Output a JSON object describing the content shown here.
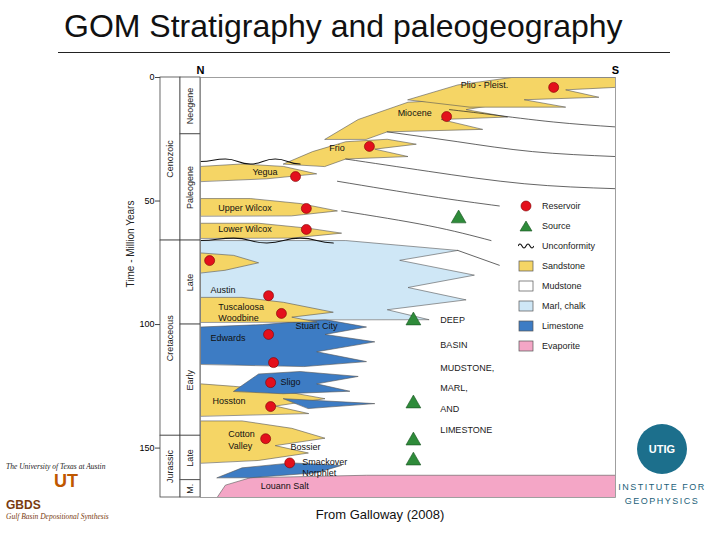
{
  "chart_data": {
    "type": "stratigraphic",
    "title": "GOM Stratigraphy and paleogeography",
    "ylabel": "Time - Million Years",
    "ylim": [
      0,
      170
    ],
    "yticks": [
      0,
      50,
      100,
      150
    ],
    "xlim": [
      0,
      100
    ],
    "xticks": [
      {
        "value": 0,
        "label": "N"
      },
      {
        "value": 100,
        "label": "S"
      }
    ],
    "eras": [
      {
        "label": "Cenozoic",
        "from": 0,
        "to": 66
      },
      {
        "label": "Cretaceous",
        "from": 66,
        "to": 145
      },
      {
        "label": "Jurassic",
        "from": 145,
        "to": 170
      }
    ],
    "epochs": [
      {
        "label": "Neogene",
        "from": 0,
        "to": 23
      },
      {
        "label": "Paleogene",
        "from": 23,
        "to": 66
      },
      {
        "label": "Late",
        "from": 66,
        "to": 100
      },
      {
        "label": "Early",
        "from": 100,
        "to": 145
      },
      {
        "label": "Late",
        "from": 145,
        "to": 163
      },
      {
        "label": "M.",
        "from": 163,
        "to": 170
      }
    ],
    "lithologies": [
      {
        "name": "Sandstone",
        "color": "#f5d565"
      },
      {
        "name": "Mudstone",
        "color": "#ffffff"
      },
      {
        "name": "Marl, chalk",
        "color": "#cfe7f6"
      },
      {
        "name": "Limestone",
        "color": "#3d7cc4"
      },
      {
        "name": "Evaporite",
        "color": "#f4a6c6"
      }
    ],
    "units": [
      {
        "lithology": "Evaporite",
        "points": [
          [
            4,
            170
          ],
          [
            6,
            165
          ],
          [
            12,
            162
          ],
          [
            40,
            161
          ],
          [
            100,
            161
          ],
          [
            100,
            170
          ]
        ]
      },
      {
        "lithology": "Limestone",
        "points": [
          [
            4,
            162
          ],
          [
            10,
            158
          ],
          [
            22,
            156
          ],
          [
            34,
            157
          ],
          [
            28,
            160
          ],
          [
            12,
            162
          ]
        ]
      },
      {
        "lithology": "Sandstone",
        "points": [
          [
            0,
            156
          ],
          [
            0,
            139
          ],
          [
            10,
            139
          ],
          [
            22,
            142
          ],
          [
            30,
            146
          ],
          [
            18,
            149
          ],
          [
            26,
            152
          ],
          [
            14,
            155
          ]
        ]
      },
      {
        "lithology": "Sandstone",
        "points": [
          [
            0,
            137
          ],
          [
            0,
            124
          ],
          [
            8,
            125
          ],
          [
            20,
            127
          ],
          [
            30,
            130
          ],
          [
            18,
            133
          ],
          [
            26,
            136
          ]
        ]
      },
      {
        "lithology": "Limestone",
        "points": [
          [
            20,
            130
          ],
          [
            42,
            132
          ],
          [
            26,
            134
          ]
        ]
      },
      {
        "lithology": "Limestone",
        "points": [
          [
            8,
            127
          ],
          [
            14,
            120
          ],
          [
            24,
            119
          ],
          [
            38,
            121
          ],
          [
            28,
            124
          ],
          [
            36,
            127
          ],
          [
            20,
            128
          ]
        ]
      },
      {
        "lithology": "Limestone",
        "points": [
          [
            0,
            116
          ],
          [
            0,
            101
          ],
          [
            15,
            100
          ],
          [
            30,
            98
          ],
          [
            40,
            101
          ],
          [
            30,
            104
          ],
          [
            42,
            107
          ],
          [
            28,
            111
          ],
          [
            40,
            115
          ],
          [
            25,
            117
          ]
        ]
      },
      {
        "lithology": "Marl, chalk",
        "points": [
          [
            0,
            98
          ],
          [
            0,
            66
          ],
          [
            35,
            66
          ],
          [
            62,
            70
          ],
          [
            48,
            74
          ],
          [
            66,
            80
          ],
          [
            50,
            85
          ],
          [
            64,
            90
          ],
          [
            45,
            94
          ],
          [
            55,
            98
          ]
        ]
      },
      {
        "lithology": "Sandstone",
        "points": [
          [
            0,
            99
          ],
          [
            0,
            89
          ],
          [
            10,
            89
          ],
          [
            20,
            91
          ],
          [
            32,
            95
          ],
          [
            22,
            97
          ],
          [
            28,
            99
          ]
        ]
      },
      {
        "lithology": "Sandstone",
        "points": [
          [
            0,
            79
          ],
          [
            0,
            71
          ],
          [
            8,
            72
          ],
          [
            14,
            75
          ],
          [
            6,
            78
          ]
        ]
      },
      {
        "lithology": "Sandstone",
        "points": [
          [
            0,
            65
          ],
          [
            0,
            59
          ],
          [
            14,
            59
          ],
          [
            26,
            61
          ],
          [
            34,
            63
          ],
          [
            22,
            65
          ]
        ]
      },
      {
        "lithology": "Sandstone",
        "points": [
          [
            0,
            56
          ],
          [
            0,
            49
          ],
          [
            12,
            49
          ],
          [
            24,
            51
          ],
          [
            33,
            54
          ],
          [
            22,
            56
          ]
        ]
      },
      {
        "lithology": "Sandstone",
        "points": [
          [
            0,
            42
          ],
          [
            0,
            36
          ],
          [
            10,
            35
          ],
          [
            20,
            36
          ],
          [
            28,
            39
          ],
          [
            16,
            41
          ]
        ]
      },
      {
        "lithology": "Sandstone",
        "points": [
          [
            20,
            35
          ],
          [
            27,
            30
          ],
          [
            35,
            26
          ],
          [
            45,
            25
          ],
          [
            52,
            27
          ],
          [
            42,
            29
          ],
          [
            50,
            32
          ],
          [
            35,
            33
          ],
          [
            30,
            36
          ]
        ]
      },
      {
        "lithology": "Sandstone",
        "points": [
          [
            30,
            25
          ],
          [
            38,
            17
          ],
          [
            50,
            10
          ],
          [
            62,
            9
          ],
          [
            75,
            10
          ],
          [
            64,
            13
          ],
          [
            74,
            16
          ],
          [
            58,
            17
          ],
          [
            68,
            21
          ],
          [
            45,
            22
          ],
          [
            40,
            25
          ]
        ]
      },
      {
        "lithology": "Sandstone",
        "points": [
          [
            50,
            9
          ],
          [
            62,
            3
          ],
          [
            75,
            0
          ],
          [
            100,
            0
          ],
          [
            100,
            4
          ],
          [
            88,
            5
          ],
          [
            96,
            8
          ],
          [
            78,
            9
          ],
          [
            88,
            12
          ],
          [
            65,
            12
          ]
        ]
      }
    ],
    "time_lines": [
      [
        [
          60,
          13
        ],
        [
          70,
          15
        ],
        [
          85,
          18
        ],
        [
          100,
          20
        ]
      ],
      [
        [
          45,
          22
        ],
        [
          62,
          26
        ],
        [
          80,
          30
        ],
        [
          100,
          32
        ]
      ],
      [
        [
          35,
          33
        ],
        [
          55,
          38
        ],
        [
          78,
          43
        ],
        [
          100,
          45
        ]
      ],
      [
        [
          33,
          42
        ],
        [
          55,
          48
        ],
        [
          72,
          52
        ]
      ],
      [
        [
          34,
          54
        ],
        [
          55,
          60
        ],
        [
          70,
          66
        ]
      ],
      [
        [
          62,
          70
        ],
        [
          72,
          76
        ]
      ]
    ],
    "unconformity": {
      "name": "Unconformity",
      "line_style": "wavy",
      "lines": [
        [
          [
            0,
            34
          ],
          [
            6,
            33
          ],
          [
            12,
            35
          ],
          [
            18,
            33
          ],
          [
            24,
            35
          ]
        ],
        [
          [
            0,
            66
          ],
          [
            8,
            65
          ],
          [
            16,
            67
          ],
          [
            24,
            65
          ],
          [
            32,
            67
          ]
        ]
      ]
    },
    "reservoirs": {
      "name": "Reservoir",
      "color": "#e3101c",
      "marker": "circle",
      "x": [
        85.1,
        59.3,
        40.7,
        22.9,
        25.5,
        25.5,
        2.2,
        16.4,
        19.5,
        16.4,
        17.6,
        16.9,
        16.9,
        15.7,
        21.5
      ],
      "y": [
        4.0,
        15.8,
        27.9,
        40.1,
        53.0,
        61.5,
        74.1,
        88.3,
        95.5,
        104.0,
        115.4,
        123.5,
        133.2,
        146.2,
        156.0
      ]
    },
    "sources": {
      "name": "Source",
      "color": "#2e8b3a",
      "marker": "triangle",
      "x": [
        62.2,
        51.3,
        51.3,
        51.3,
        51.3
      ],
      "y": [
        57.1,
        98.4,
        132.0,
        147.0,
        155.1
      ]
    },
    "labels": [
      {
        "text": "Plio - Pleist.",
        "x": 62.7,
        "y": 3.2
      },
      {
        "text": "Miocene",
        "x": 47.5,
        "y": 14.6
      },
      {
        "text": "Frio",
        "x": 31.0,
        "y": 28.7
      },
      {
        "text": "Yegua",
        "x": 12.5,
        "y": 38.1
      },
      {
        "text": "Upper Wilcox",
        "x": 4.3,
        "y": 53.0
      },
      {
        "text": "Lower Wilcox",
        "x": 4.3,
        "y": 61.5
      },
      {
        "text": "Austin",
        "x": 2.4,
        "y": 86.2
      },
      {
        "text": "Tuscaloosa",
        "x": 4.3,
        "y": 93.1
      },
      {
        "text": "Woodbine",
        "x": 4.3,
        "y": 97.2
      },
      {
        "text": "Edwards",
        "x": 2.4,
        "y": 105.3
      },
      {
        "text": "Stuart City",
        "x": 22.9,
        "y": 100.6
      },
      {
        "text": "Sligo",
        "x": 19.3,
        "y": 123.1
      },
      {
        "text": "Hosston",
        "x": 2.9,
        "y": 130.8
      },
      {
        "text": "Cotton",
        "x": 6.7,
        "y": 144.5
      },
      {
        "text": "Valley",
        "x": 6.7,
        "y": 149.4
      },
      {
        "text": "Bossier",
        "x": 21.7,
        "y": 149.8
      },
      {
        "text": "Smackover",
        "x": 24.5,
        "y": 155.5
      },
      {
        "text": "Norphlet",
        "x": 24.5,
        "y": 160.3
      },
      {
        "text": "Louann Salt",
        "x": 14.5,
        "y": 165.2
      }
    ],
    "basin_text": {
      "lines": [
        "DEEP",
        "BASIN",
        "MUDSTONE,",
        "MARL,",
        "AND",
        "LIMESTONE"
      ],
      "x": 57.8,
      "y": [
        98.4,
        108.5,
        117.8,
        125.9,
        134.4,
        142.9
      ]
    },
    "caption": "From Galloway (2008)",
    "logo_left": [
      "The University of Texas at Austin",
      "UT",
      "GBDS",
      "Gulf Basin Depositional Synthesis"
    ],
    "logo_right": [
      "UTIG",
      "INSTITUTE FOR",
      "GEOPHYSICS"
    ]
  }
}
